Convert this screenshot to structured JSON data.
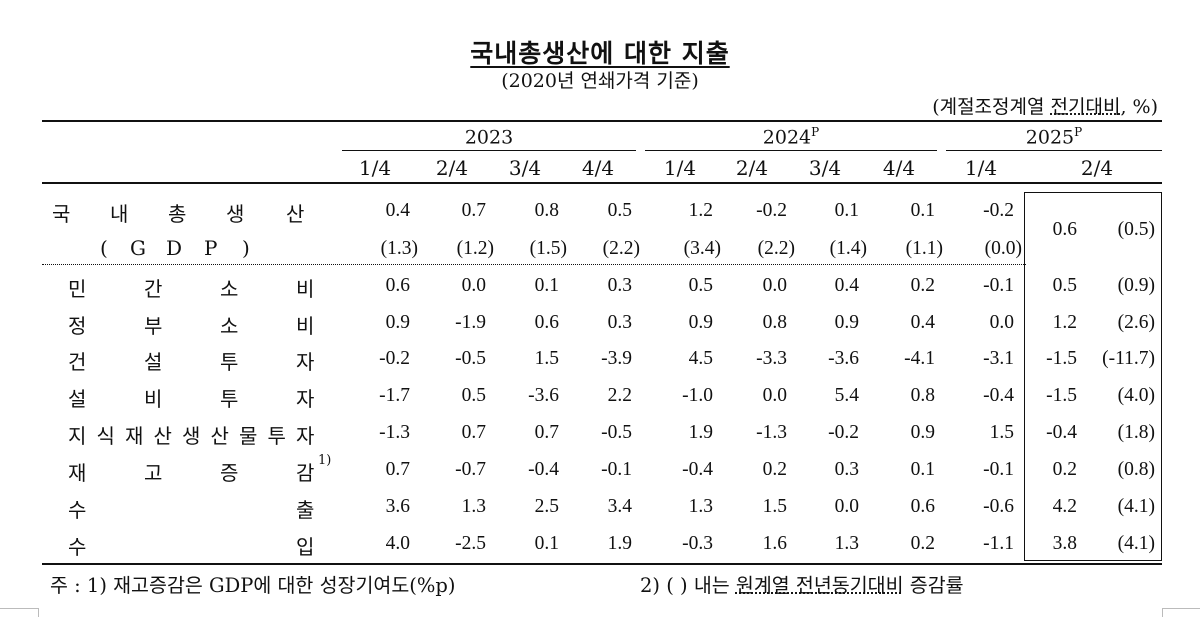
{
  "title": "국내총생산에 대한 지출",
  "subtitle": "(2020년 연쇄가격 기준)",
  "unit_prefix": "(계절조정계열 ",
  "unit_underlined": "전기대비",
  "unit_suffix": ", %)",
  "years": [
    {
      "label": "2023",
      "sup": ""
    },
    {
      "label": "2024",
      "sup": "P"
    },
    {
      "label": "2025",
      "sup": "P"
    }
  ],
  "quarters": [
    "1/4",
    "2/4",
    "3/4",
    "4/4",
    "1/4",
    "2/4",
    "3/4",
    "4/4",
    "1/4",
    "2/4"
  ],
  "gdp": {
    "label_chars": [
      "국",
      "내",
      "총",
      "생",
      "산"
    ],
    "sub_chars": [
      "(",
      "G",
      "D",
      "P",
      ")"
    ],
    "values": [
      "0.4",
      "0.7",
      "0.8",
      "0.5",
      "1.2",
      "-0.2",
      "0.1",
      "0.1",
      "-0.2"
    ],
    "yoy": [
      "(1.3)",
      "(1.2)",
      "(1.5)",
      "(2.2)",
      "(3.4)",
      "(2.2)",
      "(1.4)",
      "(1.1)",
      "(0.0)"
    ],
    "latest_value": "0.6",
    "latest_yoy": "(0.5)"
  },
  "rows": [
    {
      "chars": [
        "민",
        "간",
        "소",
        "비"
      ],
      "sup": "",
      "values": [
        "0.6",
        "0.0",
        "0.1",
        "0.3",
        "0.5",
        "0.0",
        "0.4",
        "0.2",
        "-0.1",
        "0.5"
      ],
      "yoy": "(0.9)"
    },
    {
      "chars": [
        "정",
        "부",
        "소",
        "비"
      ],
      "sup": "",
      "values": [
        "0.9",
        "-1.9",
        "0.6",
        "0.3",
        "0.9",
        "0.8",
        "0.9",
        "0.4",
        "0.0",
        "1.2"
      ],
      "yoy": "(2.6)"
    },
    {
      "chars": [
        "건",
        "설",
        "투",
        "자"
      ],
      "sup": "",
      "values": [
        "-0.2",
        "-0.5",
        "1.5",
        "-3.9",
        "4.5",
        "-3.3",
        "-3.6",
        "-4.1",
        "-3.1",
        "-1.5"
      ],
      "yoy": "(-11.7)"
    },
    {
      "chars": [
        "설",
        "비",
        "투",
        "자"
      ],
      "sup": "",
      "values": [
        "-1.7",
        "0.5",
        "-3.6",
        "2.2",
        "-1.0",
        "0.0",
        "5.4",
        "0.8",
        "-0.4",
        "-1.5"
      ],
      "yoy": "(4.0)"
    },
    {
      "chars": [
        "지",
        "식",
        "재",
        "산",
        "생",
        "산",
        "물",
        "투",
        "자"
      ],
      "sup": "",
      "values": [
        "-1.3",
        "0.7",
        "0.7",
        "-0.5",
        "1.9",
        "-1.3",
        "-0.2",
        "0.9",
        "1.5",
        "-0.4"
      ],
      "yoy": "(1.8)"
    },
    {
      "chars": [
        "재",
        "고",
        "증",
        "감"
      ],
      "sup": "1)",
      "values": [
        "0.7",
        "-0.7",
        "-0.4",
        "-0.1",
        "-0.4",
        "0.2",
        "0.3",
        "0.1",
        "-0.1",
        "0.2"
      ],
      "yoy": "(0.8)"
    },
    {
      "chars": [
        "수",
        "",
        "",
        "출"
      ],
      "sup": "",
      "values": [
        "3.6",
        "1.3",
        "2.5",
        "3.4",
        "1.3",
        "1.5",
        "0.0",
        "0.6",
        "-0.6",
        "4.2"
      ],
      "yoy": "(4.1)"
    },
    {
      "chars": [
        "수",
        "",
        "",
        "입"
      ],
      "sup": "",
      "values": [
        "4.0",
        "-2.5",
        "0.1",
        "1.9",
        "-0.3",
        "1.6",
        "1.3",
        "0.2",
        "-1.1",
        "3.8"
      ],
      "yoy": "(4.1)"
    }
  ],
  "notes": {
    "note1": "주 : 1) 재고증감은 GDP에 대한 성장기여도(%p)",
    "note2_prefix": "2) (  ) 내는 ",
    "note2_underlined": "원계열 전년동기대비",
    "note2_suffix": " 증감률"
  }
}
